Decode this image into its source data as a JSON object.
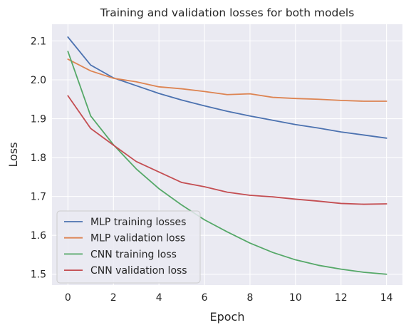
{
  "chart_data": {
    "type": "line",
    "title": "Training and validation losses for both models",
    "xlabel": "Epoch",
    "ylabel": "Loss",
    "xlim": [
      -0.7,
      14.7
    ],
    "ylim": [
      1.472,
      2.143
    ],
    "xticks": [
      0,
      2,
      4,
      6,
      8,
      10,
      12,
      14
    ],
    "yticks": [
      1.5,
      1.6,
      1.7,
      1.8,
      1.9,
      2.0,
      2.1
    ],
    "xtick_labels": [
      "0",
      "2",
      "4",
      "6",
      "8",
      "10",
      "12",
      "14"
    ],
    "ytick_labels": [
      "1.5",
      "1.6",
      "1.7",
      "1.8",
      "1.9",
      "2.0",
      "2.1"
    ],
    "grid": true,
    "legend_position": "lower-left",
    "x": [
      0,
      1,
      2,
      3,
      4,
      5,
      6,
      7,
      8,
      9,
      10,
      11,
      12,
      13,
      14
    ],
    "series": [
      {
        "name": "MLP training losses",
        "color": "#4c72b0",
        "values": [
          2.11,
          2.038,
          2.005,
          1.985,
          1.965,
          1.948,
          1.933,
          1.919,
          1.907,
          1.896,
          1.885,
          1.876,
          1.866,
          1.858,
          1.85
        ]
      },
      {
        "name": "MLP validation loss",
        "color": "#dd8452",
        "values": [
          2.053,
          2.023,
          2.004,
          1.995,
          1.982,
          1.977,
          1.97,
          1.962,
          1.964,
          1.955,
          1.952,
          1.95,
          1.947,
          1.945,
          1.945
        ]
      },
      {
        "name": "CNN training loss",
        "color": "#55a868",
        "values": [
          2.073,
          1.907,
          1.833,
          1.771,
          1.72,
          1.678,
          1.64,
          1.609,
          1.58,
          1.556,
          1.537,
          1.523,
          1.513,
          1.505,
          1.5
        ]
      },
      {
        "name": "CNN validation loss",
        "color": "#c44e52",
        "values": [
          1.959,
          1.875,
          1.832,
          1.79,
          1.763,
          1.736,
          1.725,
          1.711,
          1.703,
          1.699,
          1.693,
          1.688,
          1.682,
          1.68,
          1.681
        ]
      }
    ]
  },
  "style": {
    "plot_background": "#eaeaf2",
    "grid_color": "#ffffff",
    "text_color": "#262626",
    "legend_background": "#eaeaf2",
    "legend_border": "#cccccc"
  }
}
